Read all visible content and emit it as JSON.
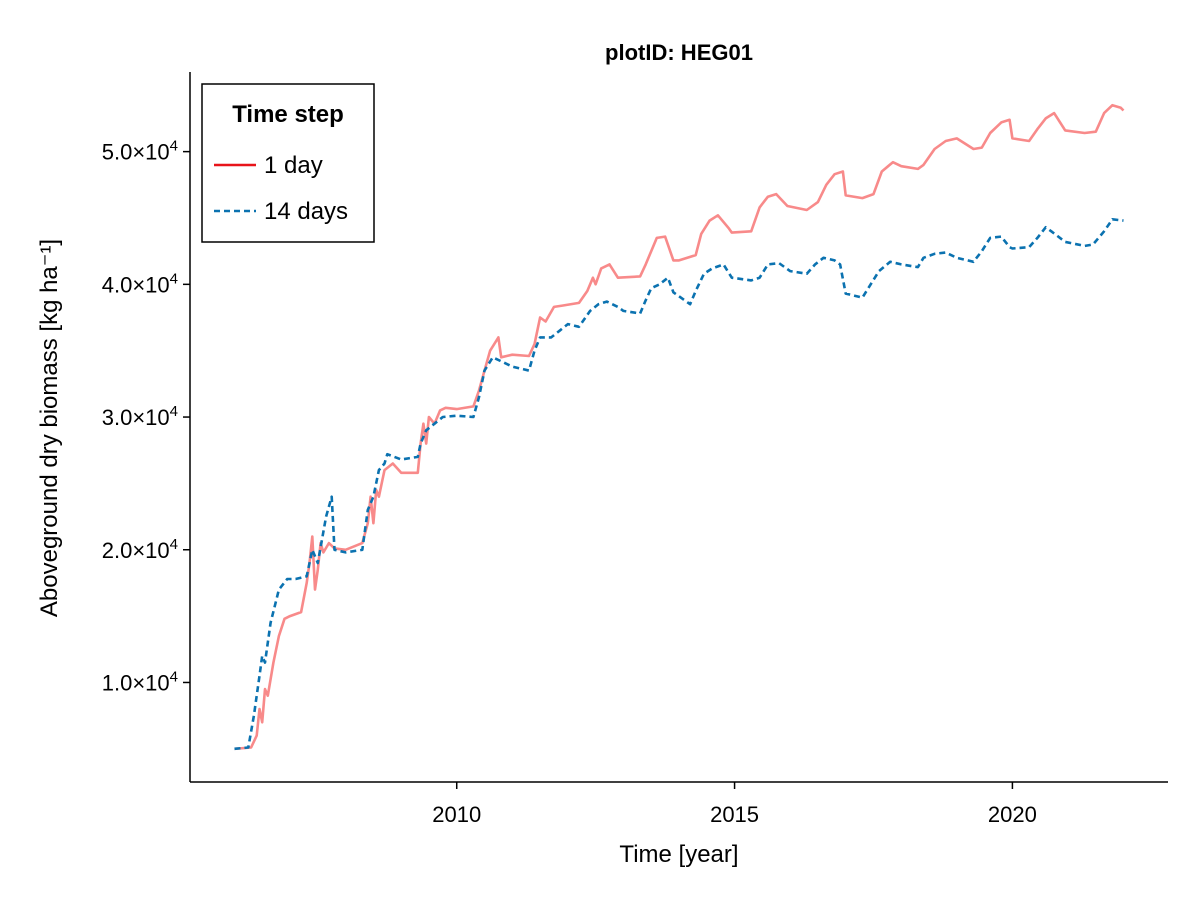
{
  "chart_data": {
    "type": "line",
    "title": "plotID: HEG01",
    "xlabel": "Time [year]",
    "ylabel": "Aboveground dry biomass [kg ha⁻¹]",
    "xlim": [
      2005.2,
      2022.8
    ],
    "ylim": [
      2500,
      56000
    ],
    "x_ticks": [
      2010,
      2015,
      2020
    ],
    "x_tick_labels": [
      "2010",
      "2015",
      "2020"
    ],
    "y_ticks": [
      10000,
      20000,
      30000,
      40000,
      50000
    ],
    "y_tick_labels": [
      {
        "mantissa": "1.0",
        "base": "×10",
        "exp": "4"
      },
      {
        "mantissa": "2.0",
        "base": "×10",
        "exp": "4"
      },
      {
        "mantissa": "3.0",
        "base": "×10",
        "exp": "4"
      },
      {
        "mantissa": "4.0",
        "base": "×10",
        "exp": "4"
      },
      {
        "mantissa": "5.0",
        "base": "×10",
        "exp": "4"
      }
    ],
    "grid": false,
    "legend": {
      "title": "Time step",
      "position": "top-left"
    },
    "series": [
      {
        "name": "1 day",
        "color": "#f88a8a",
        "legend_color": "#e8141a",
        "dash": "solid",
        "x": [
          2006.0,
          2006.3,
          2006.4,
          2006.45,
          2006.5,
          2006.55,
          2006.6,
          2006.7,
          2006.8,
          2006.9,
          2007.0,
          2007.2,
          2007.3,
          2007.35,
          2007.4,
          2007.45,
          2007.5,
          2007.55,
          2007.6,
          2007.7,
          2007.8,
          2008.0,
          2008.3,
          2008.4,
          2008.45,
          2008.5,
          2008.55,
          2008.6,
          2008.7,
          2008.85,
          2009.0,
          2009.3,
          2009.35,
          2009.4,
          2009.45,
          2009.5,
          2009.6,
          2009.7,
          2009.8,
          2010.0,
          2010.3,
          2010.4,
          2010.5,
          2010.6,
          2010.75,
          2010.8,
          2011.0,
          2011.3,
          2011.4,
          2011.45,
          2011.5,
          2011.6,
          2011.75,
          2011.9,
          2012.2,
          2012.35,
          2012.45,
          2012.5,
          2012.6,
          2012.75,
          2012.9,
          2013.3,
          2013.4,
          2013.5,
          2013.6,
          2013.75,
          2013.9,
          2014.0,
          2014.3,
          2014.4,
          2014.55,
          2014.7,
          2014.9,
          2014.95,
          2015.3,
          2015.45,
          2015.6,
          2015.75,
          2015.95,
          2016.3,
          2016.5,
          2016.65,
          2016.8,
          2016.95,
          2017.0,
          2017.3,
          2017.5,
          2017.65,
          2017.85,
          2018.0,
          2018.3,
          2018.4,
          2018.6,
          2018.8,
          2019.0,
          2019.3,
          2019.45,
          2019.6,
          2019.8,
          2019.95,
          2020.0,
          2020.3,
          2020.45,
          2020.6,
          2020.75,
          2020.95,
          2021.3,
          2021.5,
          2021.65,
          2021.8,
          2021.95,
          2022.0
        ],
        "y": [
          5000,
          5100,
          6000,
          8000,
          7000,
          9500,
          9000,
          11500,
          13500,
          14800,
          15000,
          15300,
          17500,
          19000,
          21000,
          17000,
          18500,
          20500,
          19800,
          20500,
          20100,
          20000,
          20500,
          22000,
          24000,
          22000,
          24500,
          24000,
          26000,
          26500,
          25800,
          25800,
          28000,
          29500,
          28000,
          30000,
          29500,
          30500,
          30700,
          30600,
          30800,
          32000,
          33500,
          35000,
          36000,
          34500,
          34700,
          34600,
          35500,
          36500,
          37500,
          37200,
          38300,
          38400,
          38600,
          39500,
          40500,
          40000,
          41200,
          41500,
          40500,
          40600,
          41500,
          42500,
          43500,
          43600,
          41800,
          41800,
          42200,
          43800,
          44800,
          45200,
          44200,
          43900,
          44000,
          45800,
          46600,
          46800,
          45900,
          45600,
          46200,
          47500,
          48300,
          48500,
          46700,
          46500,
          46800,
          48500,
          49200,
          48900,
          48700,
          49000,
          50200,
          50800,
          51000,
          50200,
          50300,
          51400,
          52200,
          52400,
          51000,
          50800,
          51700,
          52500,
          52900,
          51600,
          51400,
          51500,
          52900,
          53500,
          53300,
          53100
        ]
      },
      {
        "name": "14 days",
        "color": "#0b72b0",
        "legend_color": "#0b72b0",
        "dash": "dashed",
        "x": [
          2006.0,
          2006.25,
          2006.35,
          2006.45,
          2006.5,
          2006.55,
          2006.65,
          2006.8,
          2006.95,
          2007.1,
          2007.3,
          2007.4,
          2007.5,
          2007.65,
          2007.75,
          2007.8,
          2008.0,
          2008.3,
          2008.4,
          2008.5,
          2008.6,
          2008.7,
          2008.75,
          2009.0,
          2009.3,
          2009.35,
          2009.45,
          2009.6,
          2009.75,
          2010.0,
          2010.3,
          2010.4,
          2010.5,
          2010.65,
          2010.8,
          2011.0,
          2011.3,
          2011.4,
          2011.5,
          2011.7,
          2011.85,
          2012.0,
          2012.2,
          2012.4,
          2012.55,
          2012.7,
          2012.9,
          2013.0,
          2013.3,
          2013.4,
          2013.5,
          2013.65,
          2013.8,
          2013.9,
          2014.2,
          2014.3,
          2014.45,
          2014.6,
          2014.8,
          2014.95,
          2015.3,
          2015.45,
          2015.6,
          2015.8,
          2016.0,
          2016.3,
          2016.45,
          2016.6,
          2016.8,
          2016.9,
          2017.0,
          2017.3,
          2017.45,
          2017.6,
          2017.8,
          2018.0,
          2018.3,
          2018.4,
          2018.6,
          2018.8,
          2019.0,
          2019.3,
          2019.45,
          2019.6,
          2019.8,
          2019.95,
          2020.0,
          2020.3,
          2020.45,
          2020.6,
          2020.7,
          2020.95,
          2021.3,
          2021.45,
          2021.65,
          2021.8,
          2022.0
        ],
        "y": [
          5000,
          5100,
          7500,
          10500,
          12000,
          11500,
          14500,
          17000,
          17800,
          17800,
          18000,
          20000,
          19000,
          22500,
          24000,
          20000,
          19800,
          20000,
          23000,
          24000,
          26000,
          26500,
          27200,
          26800,
          27000,
          28000,
          29000,
          29500,
          30000,
          30100,
          30000,
          31500,
          33500,
          34500,
          34200,
          33800,
          33500,
          35000,
          36000,
          36000,
          36500,
          37000,
          36800,
          38000,
          38500,
          38700,
          38300,
          38000,
          37800,
          38800,
          39700,
          40000,
          40500,
          39400,
          38500,
          39500,
          40800,
          41200,
          41500,
          40500,
          40300,
          40500,
          41500,
          41600,
          41000,
          40800,
          41500,
          42000,
          41800,
          41500,
          39300,
          39000,
          40000,
          41000,
          41700,
          41500,
          41300,
          42000,
          42300,
          42400,
          42000,
          41700,
          42500,
          43500,
          43600,
          42800,
          42700,
          42800,
          43500,
          44300,
          44000,
          43200,
          42900,
          43000,
          44000,
          44900,
          44800
        ]
      }
    ]
  }
}
